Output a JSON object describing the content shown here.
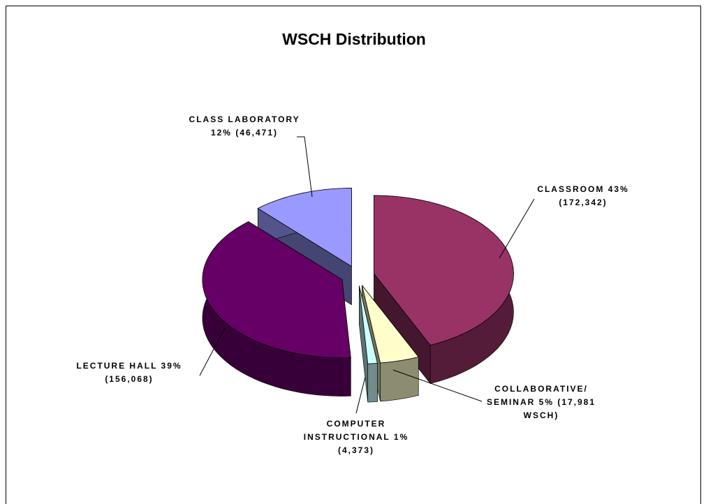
{
  "chart_data": {
    "type": "pie3d",
    "title": "WSCH Distribution",
    "categories": [
      "CLASSROOM",
      "COLLABORATIVE/ SEMINAR",
      "COMPUTER INSTRUCTIONAL",
      "LECTURE HALL",
      "CLASS LABORATORY"
    ],
    "values": [
      172342,
      17981,
      4373,
      156068,
      46471
    ],
    "value_labels": [
      "(172,342)",
      "(17,981 WSCH)",
      "(4,373)",
      "(156,068)",
      "(46,471)"
    ],
    "percent_labels": [
      "43%",
      "5%",
      "1%",
      "39%",
      "12%"
    ],
    "colors": [
      "#993366",
      "#ffffcc",
      "#ccffff",
      "#660066",
      "#9999ff"
    ]
  }
}
